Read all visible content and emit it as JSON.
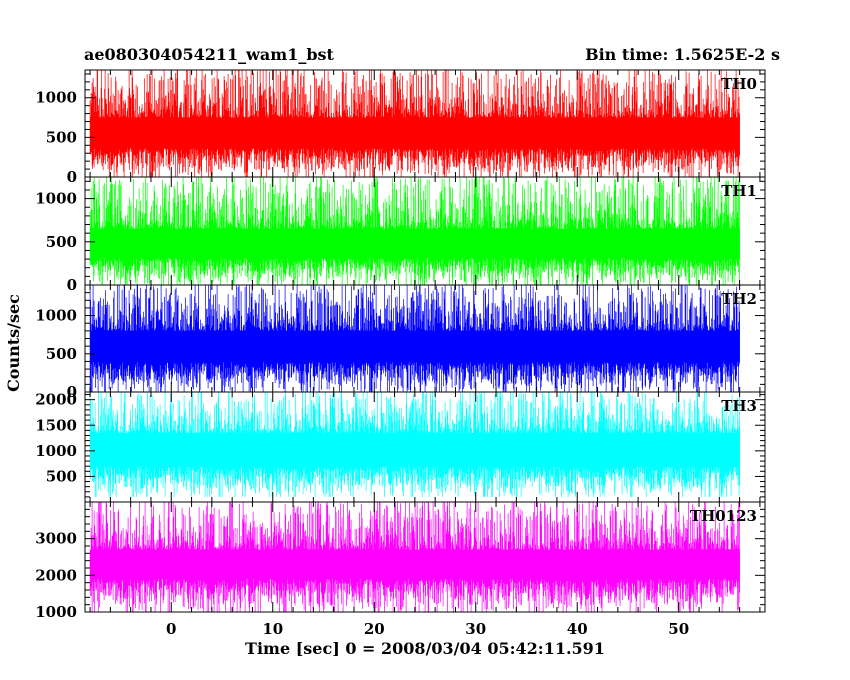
{
  "header": {
    "title": "ae080304054211_wam1_bst",
    "bin_time": "Bin time: 1.5625E-2 s"
  },
  "chart_data": {
    "type": "line",
    "xlabel": "Time [sec] 0 = 2008/03/04 05:42:11.591",
    "ylabel": "Counts/sec",
    "xlim": [
      -8.5,
      58.5
    ],
    "x_ticks": [
      0,
      10,
      20,
      30,
      40,
      50
    ],
    "x_range": [
      -8,
      56
    ],
    "series": [
      {
        "name": "TH0",
        "color": "#ff0000",
        "ylim": [
          0,
          1350
        ],
        "y_ticks": [
          0,
          500,
          1000
        ],
        "baseline": 500,
        "low_range": [
          0,
          520
        ],
        "high_range": [
          750,
          1350
        ],
        "floor": 0
      },
      {
        "name": "TH1",
        "color": "#00ff00",
        "ylim": [
          0,
          1250
        ],
        "y_ticks": [
          0,
          500,
          1000
        ],
        "baseline": 420,
        "low_range": [
          0,
          450
        ],
        "high_range": [
          650,
          1250
        ],
        "floor": 0
      },
      {
        "name": "TH2",
        "color": "#0000ff",
        "ylim": [
          0,
          1400
        ],
        "y_ticks": [
          0,
          500,
          1000
        ],
        "baseline": 550,
        "low_range": [
          0,
          560
        ],
        "high_range": [
          800,
          1400
        ],
        "floor": 0
      },
      {
        "name": "TH3",
        "color": "#00ffff",
        "ylim": [
          0,
          2150
        ],
        "y_ticks": [
          500,
          1000,
          1500,
          2000
        ],
        "baseline": 1000,
        "low_range": [
          100,
          950
        ],
        "high_range": [
          1350,
          2150
        ],
        "floor": 100
      },
      {
        "name": "TH0123",
        "color": "#ff00ff",
        "ylim": [
          1000,
          4000
        ],
        "y_ticks": [
          1000,
          2000,
          3000
        ],
        "baseline": 2450,
        "low_range": [
          1000,
          2300
        ],
        "high_range": [
          2700,
          4000
        ],
        "floor": 1000
      }
    ]
  }
}
